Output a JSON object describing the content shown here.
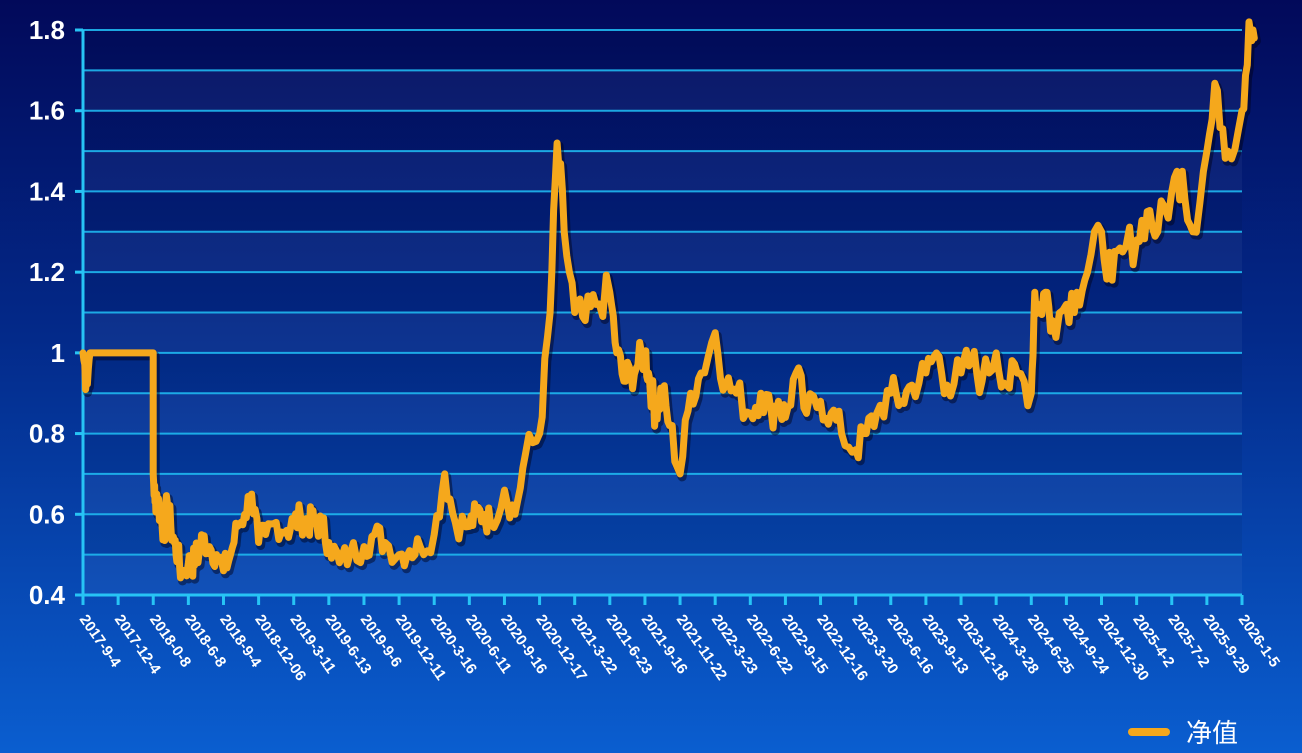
{
  "chart_data": {
    "type": "line",
    "title": "",
    "xlabel": "",
    "ylabel": "",
    "ylim": [
      0.4,
      1.8
    ],
    "y_ticks": [
      "0.4",
      "0.6",
      "0.8",
      "1",
      "1.2",
      "1.4",
      "1.6",
      "1.8"
    ],
    "y_tick_values": [
      0.4,
      0.6,
      0.8,
      1.0,
      1.2,
      1.4,
      1.6,
      1.8
    ],
    "grid": true,
    "legend_position": "bottom-right",
    "x_tick_labels": [
      "2017-9-4",
      "2017-12-4",
      "2018-0-8",
      "2018-6-8",
      "2018-9-4",
      "2018-12-06",
      "2019-3-11",
      "2019-6-13",
      "2019-9-6",
      "2019-12-11",
      "2020-3-16",
      "2020-6-11",
      "2020-9-16",
      "2020-12-17",
      "2021-3-22",
      "2021-6-23",
      "2021-9-16",
      "2021-11-22",
      "2022-3-23",
      "2022-6-22",
      "2022-9-15",
      "2022-12-16",
      "2023-3-20",
      "2023-6-16",
      "2023-9-13",
      "2023-12-18",
      "2024-3-28",
      "2024-6-25",
      "2024-9-24",
      "2024-12-30",
      "2025-4-2",
      "2025-7-2",
      "2025-9-29",
      "2026-1-5"
    ],
    "colors": {
      "line": "#f5a81c",
      "grid": "#1fb8f0",
      "axis": "#27c4f5"
    },
    "series": [
      {
        "name": "净值",
        "x_index": [
          0,
          0.1,
          0.2,
          0.3,
          0.5,
          1.0,
          1.5,
          2.0,
          2.0,
          2.05,
          2.1,
          2.2,
          2.3,
          2.4,
          2.5,
          2.6,
          2.7,
          2.8,
          3.0,
          3.1,
          3.2,
          3.3,
          3.4,
          3.6,
          3.8,
          4.0,
          4.2,
          4.4,
          4.6,
          4.8,
          5.0,
          5.2,
          5.5,
          5.8,
          6.0,
          6.2,
          6.4,
          6.5,
          6.6,
          6.8,
          7.0,
          7.3,
          7.6,
          8.0,
          8.3,
          8.6,
          9.0,
          9.3,
          9.6,
          10.0,
          10.3,
          10.6,
          11.0,
          11.2,
          11.4,
          11.6,
          12.0,
          12.3,
          12.6,
          13.0,
          13.3,
          13.5,
          13.7,
          14.0,
          14.3,
          14.6,
          15.0,
          15.2,
          15.4,
          15.6,
          15.8,
          16.0,
          16.1,
          16.2,
          16.3,
          16.4,
          16.5,
          16.7,
          17.0,
          17.3,
          17.6,
          18.0,
          18.3,
          18.6,
          19.0,
          19.3,
          19.6,
          19.8,
          20.0,
          20.3,
          20.6,
          21.0,
          21.3,
          21.6,
          22.0,
          22.3,
          22.6,
          23.0,
          23.3,
          23.6,
          24.0,
          24.3,
          24.6,
          25.0,
          25.3,
          25.6,
          26.0,
          26.3,
          26.6,
          27.0,
          27.1,
          27.2,
          27.4,
          27.6,
          28.0,
          28.3,
          28.6,
          29.0,
          29.3,
          29.6,
          30.0,
          30.3,
          30.6,
          31.0,
          31.3,
          31.6,
          32.0,
          32.3,
          32.6,
          33.0,
          33.2,
          33.35
        ],
        "values": [
          1.0,
          0.93,
          1.0,
          1.0,
          1.0,
          1.0,
          1.0,
          1.0,
          0.7,
          0.63,
          0.65,
          0.6,
          0.55,
          0.63,
          0.57,
          0.53,
          0.5,
          0.45,
          0.48,
          0.47,
          0.5,
          0.5,
          0.54,
          0.52,
          0.5,
          0.46,
          0.5,
          0.57,
          0.6,
          0.65,
          0.53,
          0.55,
          0.58,
          0.56,
          0.58,
          0.59,
          0.58,
          0.58,
          0.58,
          0.57,
          0.53,
          0.48,
          0.5,
          0.52,
          0.55,
          0.53,
          0.5,
          0.51,
          0.52,
          0.55,
          0.7,
          0.58,
          0.57,
          0.6,
          0.6,
          0.58,
          0.66,
          0.6,
          0.75,
          0.8,
          1.1,
          1.52,
          1.3,
          1.1,
          1.08,
          1.12,
          1.15,
          1.0,
          0.93,
          0.95,
          0.97,
          1.0,
          0.95,
          0.9,
          0.85,
          0.88,
          0.9,
          0.82,
          0.7,
          0.9,
          0.95,
          1.05,
          0.92,
          0.9,
          0.85,
          0.9,
          0.85,
          0.88,
          0.84,
          0.95,
          0.85,
          0.88,
          0.85,
          0.8,
          0.76,
          0.8,
          0.85,
          0.9,
          0.88,
          0.92,
          0.95,
          1.0,
          0.92,
          0.95,
          0.98,
          0.93,
          1.0,
          0.92,
          0.95,
          0.9,
          1.15,
          1.1,
          1.15,
          1.08,
          1.12,
          1.15,
          1.2,
          1.3,
          1.18,
          1.25,
          1.28,
          1.35,
          1.3,
          1.4,
          1.45,
          1.3,
          1.5,
          1.65,
          1.5,
          1.6,
          1.82,
          1.78
        ]
      }
    ]
  },
  "legend": {
    "label": "净值"
  }
}
